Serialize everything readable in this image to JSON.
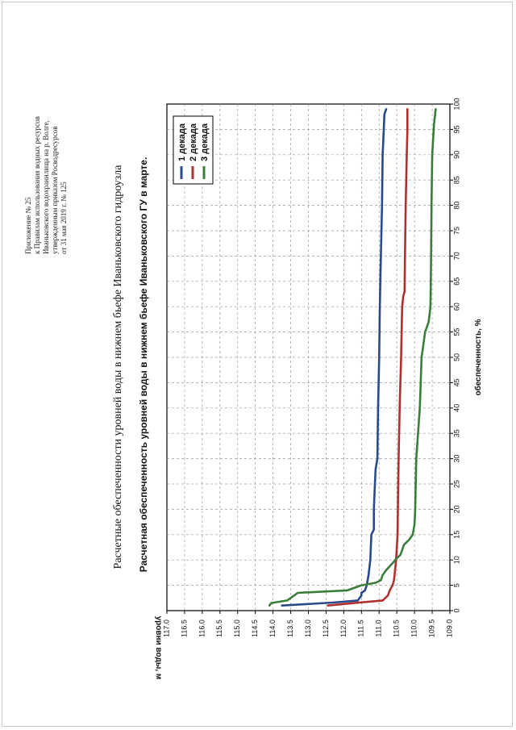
{
  "appendix": {
    "line1": "Приложение № 25",
    "line2": "к Правилам использования водных ресурсов",
    "line3": "Иваньковского водохранилища на р. Волге,",
    "line4": "утвержденным приказом Росводресурсов",
    "line5": "от 31 мая 2019 г. № 125"
  },
  "doc_title": "Расчетные обеспеченности уровней воды в нижнем бьефе Иваньковского гидроузла",
  "chart_data": {
    "type": "line",
    "title": "Расчетная обеспеченность уровней воды в нижнем бьефе Иваньковского ГУ в марте.",
    "xlabel": "обеспеченность, %",
    "ylabel": "уровни воды, м",
    "xlim": [
      0,
      100
    ],
    "ylim": [
      109.0,
      117.0
    ],
    "x_ticks": [
      "0",
      "5",
      "10",
      "15",
      "20",
      "25",
      "30",
      "35",
      "40",
      "45",
      "50",
      "55",
      "60",
      "65",
      "70",
      "75",
      "80",
      "85",
      "90",
      "95",
      "100"
    ],
    "y_ticks": [
      "109.0",
      "109.5",
      "110.0",
      "110.5",
      "111.0",
      "111.5",
      "112.0",
      "112.5",
      "113.0",
      "113.5",
      "114.0",
      "114.5",
      "115.0",
      "115.5",
      "116.0",
      "116.5",
      "117.0"
    ],
    "grid": true,
    "legend_position": "top-right",
    "series": [
      {
        "name": "1 декада",
        "color": "#2b4a8c",
        "x": [
          1,
          1.6,
          2,
          2.5,
          3,
          3.5,
          4,
          5,
          7,
          10,
          15,
          16,
          20,
          25,
          28,
          30,
          40,
          50,
          60,
          70,
          80,
          90,
          95,
          98,
          99
        ],
        "y": [
          113.75,
          112.3,
          111.6,
          111.55,
          111.5,
          111.5,
          111.4,
          111.35,
          111.3,
          111.25,
          111.22,
          111.15,
          111.15,
          111.12,
          111.1,
          111.05,
          111.03,
          111.0,
          110.98,
          110.95,
          110.92,
          110.9,
          110.87,
          110.85,
          110.8
        ]
      },
      {
        "name": "2 декада",
        "color": "#b03030",
        "x": [
          1,
          1.5,
          2,
          3,
          4,
          5,
          6,
          8,
          10,
          15,
          20,
          30,
          40,
          50,
          60,
          62,
          63,
          70,
          80,
          90,
          95,
          99
        ],
        "y": [
          112.45,
          111.7,
          110.9,
          110.75,
          110.7,
          110.62,
          110.58,
          110.55,
          110.52,
          110.48,
          110.47,
          110.45,
          110.42,
          110.38,
          110.35,
          110.32,
          110.28,
          110.27,
          110.25,
          110.22,
          110.2,
          110.2
        ]
      },
      {
        "name": "3 декада",
        "color": "#3a7d3a",
        "x": [
          1,
          1.5,
          2,
          3,
          3.5,
          4,
          5,
          5.5,
          6,
          7,
          8,
          9.5,
          10,
          11,
          13,
          14,
          15,
          17,
          20,
          30,
          35,
          40,
          50,
          55,
          57,
          60,
          70,
          80,
          90,
          96,
          99
        ],
        "y": [
          114.1,
          114.05,
          113.6,
          113.4,
          113.3,
          111.9,
          111.5,
          111.1,
          110.95,
          110.9,
          110.8,
          110.6,
          110.55,
          110.4,
          110.3,
          110.15,
          110.05,
          110.0,
          109.98,
          109.95,
          109.9,
          109.85,
          109.8,
          109.7,
          109.6,
          109.55,
          109.53,
          109.52,
          109.5,
          109.45,
          109.4
        ]
      }
    ]
  }
}
